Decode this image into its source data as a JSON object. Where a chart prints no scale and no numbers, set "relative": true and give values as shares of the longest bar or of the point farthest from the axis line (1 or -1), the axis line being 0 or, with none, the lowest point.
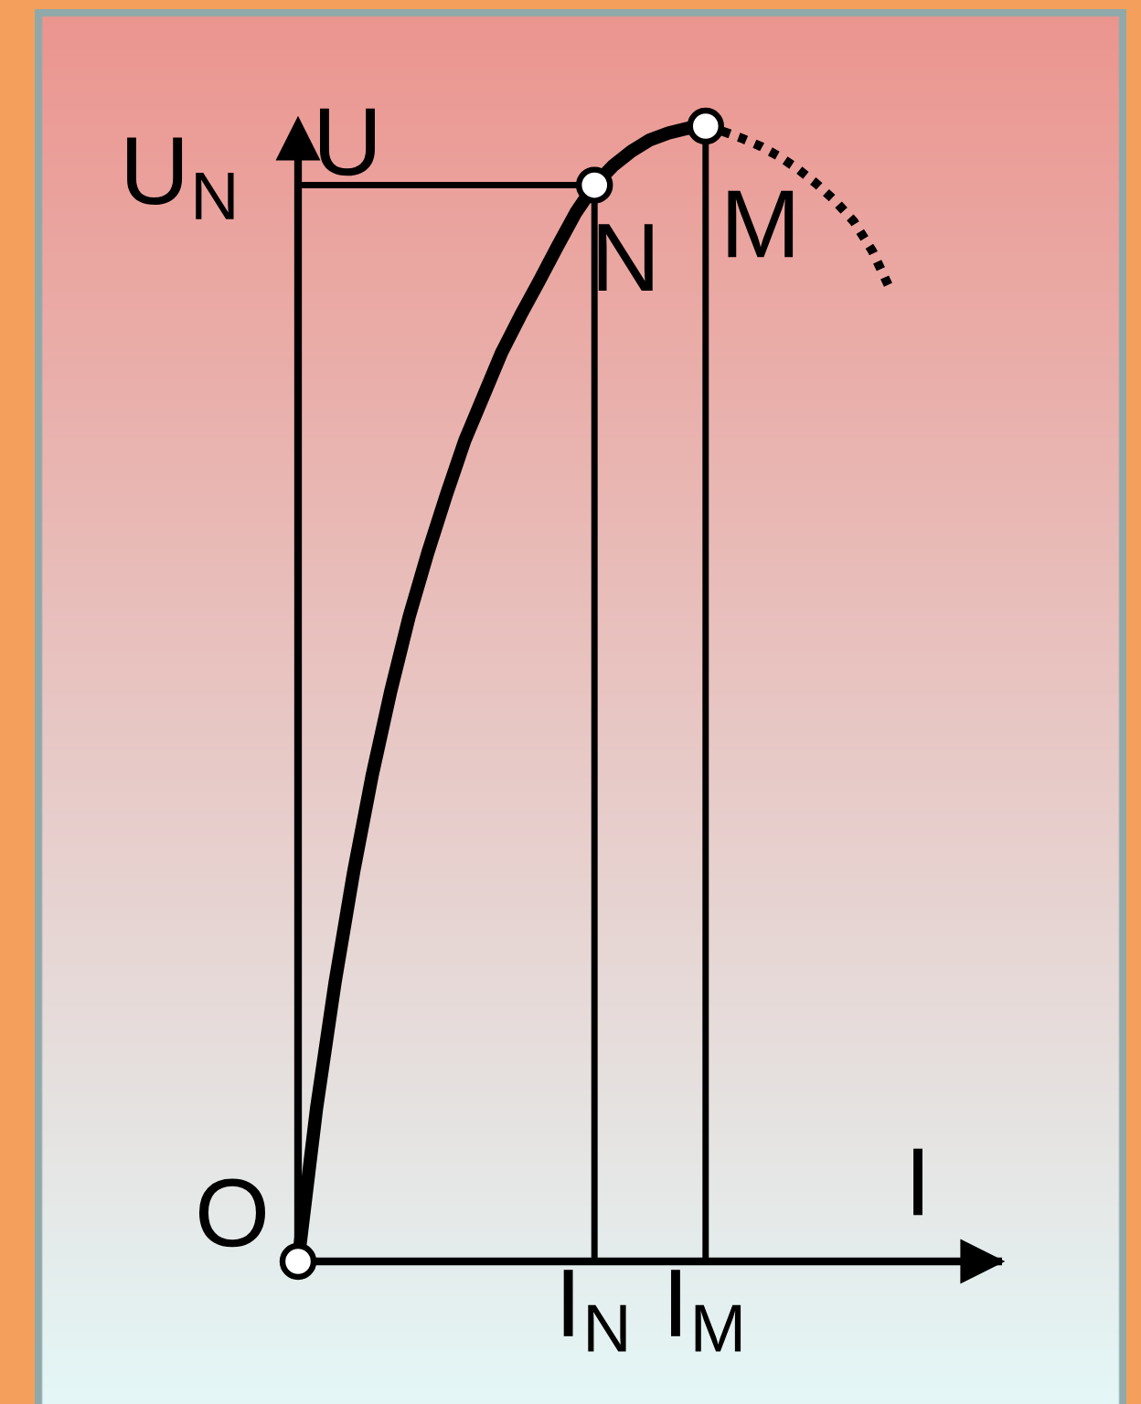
{
  "chart_data": {
    "type": "line",
    "relative": true,
    "xlabel": "I",
    "ylabel": "U",
    "categories": [
      null,
      null,
      null,
      null,
      null,
      null,
      null,
      null,
      null,
      null,
      null,
      null,
      null,
      null,
      null,
      null,
      "I$_{N}$",
      null,
      null,
      null,
      null,
      null,
      "I$_{M}$",
      null,
      null,
      null,
      null,
      null,
      null,
      null,
      null,
      null,
      null,
      null,
      null,
      null,
      null,
      null,
      null
    ],
    "series": [
      {
        "color": "#000000",
        "values": [
          0,
          0.135,
          0.246,
          0.343,
          0.428,
          0.502,
          0.568,
          0.624,
          0.675,
          0.723,
          0.762,
          0.801,
          0.833,
          0.863,
          0.894,
          0.924,
          0.948,
          0.965,
          0.978,
          0.988,
          0.994,
          0.998,
          1,
          null,
          null,
          null,
          null,
          null,
          null,
          null,
          null,
          null,
          null,
          null,
          null,
          null,
          null,
          null,
          null
        ]
      },
      {
        "color": "#000000",
        "line_style": "dotted",
        "values": [
          null,
          null,
          null,
          null,
          null,
          null,
          null,
          null,
          null,
          null,
          null,
          null,
          null,
          null,
          null,
          null,
          null,
          null,
          null,
          null,
          null,
          null,
          1,
          0.995,
          0.989,
          0.982,
          0.973,
          0.962,
          0.949,
          0.934,
          0.916,
          0.89,
          0.855,
          null,
          null,
          null,
          null,
          null,
          null
        ]
      },
      {
        "color": "#000000",
        "values": [
          0.948,
          0.948,
          0.948,
          0.948,
          0.948,
          0.948,
          0.948,
          0.948,
          0.948,
          0.948,
          0.948,
          0.948,
          0.948,
          0.948,
          0.948,
          0.948,
          0.948,
          null,
          null,
          null,
          null,
          null,
          null,
          null,
          null,
          null,
          null,
          null,
          null,
          null,
          null,
          null,
          null,
          null,
          null,
          null,
          null,
          null,
          null
        ]
      },
      {
        "type": "lollipop",
        "color": "#000000",
        "marker": "circle",
        "values": [
          null,
          null,
          null,
          null,
          null,
          null,
          null,
          null,
          null,
          null,
          null,
          null,
          null,
          null,
          null,
          null,
          0.948,
          null,
          null,
          null,
          null,
          null,
          1,
          null,
          null,
          null,
          null,
          null,
          null,
          null,
          null,
          null,
          null,
          null,
          null,
          null,
          null,
          null,
          null
        ]
      },
      {
        "type": "scatter",
        "color": "#ffffff",
        "marker": "circle",
        "values": [
          0,
          null,
          null,
          null,
          null,
          null,
          null,
          null,
          null,
          null,
          null,
          null,
          null,
          null,
          null,
          null,
          null,
          null,
          null,
          null,
          null,
          null,
          null,
          null,
          null,
          null,
          null,
          null,
          null,
          null,
          null,
          null,
          null,
          null,
          null,
          null,
          null,
          null,
          null
        ]
      }
    ],
    "annotations": [
      "O",
      {
        "text": "N",
        "x": "I$_{N}$",
        "y": 0.948
      },
      {
        "text": "M",
        "x": "I$_{M}$",
        "y": 1
      },
      "U$_{N}$"
    ]
  }
}
